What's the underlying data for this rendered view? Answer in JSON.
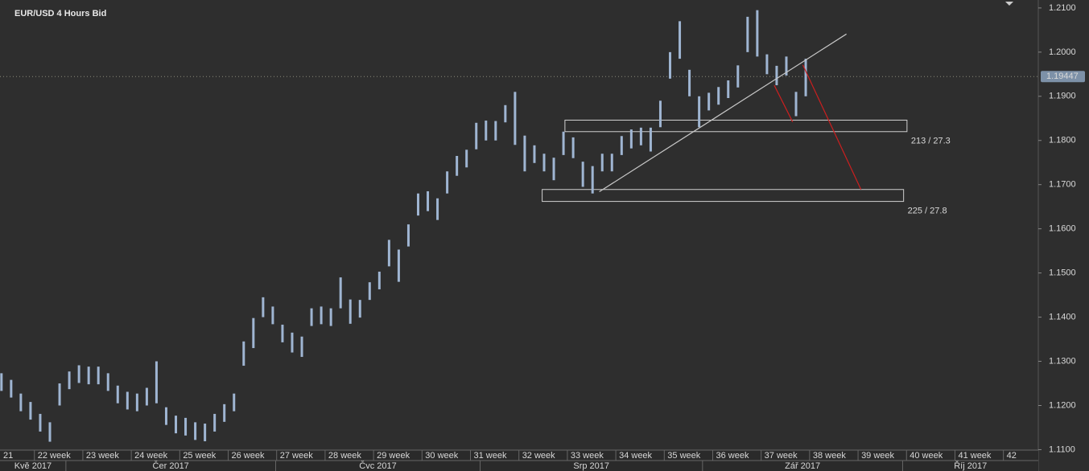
{
  "chart_data": {
    "type": "ohlc",
    "title": "EUR/USD  4 Hours Bid",
    "color": "#9fb5d2",
    "x": [
      21.32,
      21.52,
      21.72,
      21.92,
      22.12,
      22.32,
      22.52,
      22.72,
      22.92,
      23.12,
      23.32,
      23.52,
      23.72,
      23.92,
      24.12,
      24.32,
      24.52,
      24.72,
      24.92,
      25.12,
      25.32,
      25.52,
      25.72,
      25.92,
      26.12,
      26.32,
      26.52,
      26.72,
      26.92,
      27.12,
      27.32,
      27.52,
      27.72,
      27.92,
      28.12,
      28.32,
      28.52,
      28.72,
      28.92,
      29.12,
      29.32,
      29.52,
      29.72,
      29.92,
      30.12,
      30.32,
      30.52,
      30.72,
      30.92,
      31.12,
      31.32,
      31.52,
      31.72,
      31.92,
      32.12,
      32.32,
      32.52,
      32.72,
      32.92,
      33.12,
      33.32,
      33.52,
      33.72,
      33.92,
      34.12,
      34.32,
      34.52,
      34.72,
      34.92,
      35.12,
      35.32,
      35.52,
      35.72,
      35.92,
      36.12,
      36.32,
      36.52,
      36.72,
      36.92,
      37.12,
      37.32,
      37.52,
      37.72,
      37.92
    ],
    "high": [
      1.1273,
      1.1258,
      1.1227,
      1.1208,
      1.1181,
      1.1162,
      1.125,
      1.1277,
      1.1291,
      1.1288,
      1.1288,
      1.1273,
      1.1245,
      1.1231,
      1.1227,
      1.124,
      1.13,
      1.1196,
      1.1177,
      1.1172,
      1.1162,
      1.1159,
      1.1181,
      1.1203,
      1.1227,
      1.1345,
      1.1398,
      1.1445,
      1.1424,
      1.1383,
      1.1365,
      1.1356,
      1.142,
      1.1424,
      1.142,
      1.149,
      1.144,
      1.1439,
      1.1479,
      1.1503,
      1.1575,
      1.1553,
      1.161,
      1.168,
      1.1685,
      1.1669,
      1.173,
      1.1765,
      1.1779,
      1.184,
      1.1845,
      1.1844,
      1.188,
      1.191,
      1.1811,
      1.1789,
      1.177,
      1.1761,
      1.182,
      1.1807,
      1.1752,
      1.1742,
      1.177,
      1.177,
      1.181,
      1.1825,
      1.1829,
      1.1829,
      1.189,
      1.2,
      1.207,
      1.196,
      1.19,
      1.1908,
      1.1921,
      1.1936,
      1.197,
      1.208,
      1.2095,
      1.1995,
      1.1969,
      1.199,
      1.191,
      1.1985
    ],
    "low": [
      1.1233,
      1.1218,
      1.1187,
      1.1168,
      1.1141,
      1.1118,
      1.12,
      1.1237,
      1.1251,
      1.1248,
      1.1248,
      1.1233,
      1.1205,
      1.1191,
      1.1187,
      1.12,
      1.1205,
      1.1156,
      1.1137,
      1.1132,
      1.1122,
      1.1119,
      1.1141,
      1.1163,
      1.1187,
      1.129,
      1.133,
      1.14,
      1.1384,
      1.1343,
      1.132,
      1.131,
      1.138,
      1.1384,
      1.138,
      1.142,
      1.1385,
      1.1399,
      1.1439,
      1.1463,
      1.1515,
      1.148,
      1.156,
      1.163,
      1.164,
      1.162,
      1.168,
      1.172,
      1.1739,
      1.178,
      1.18,
      1.18,
      1.1841,
      1.179,
      1.173,
      1.1749,
      1.173,
      1.171,
      1.1767,
      1.176,
      1.1695,
      1.168,
      1.173,
      1.173,
      1.1767,
      1.1782,
      1.1789,
      1.1775,
      1.183,
      1.194,
      1.1985,
      1.19,
      1.183,
      1.1868,
      1.1881,
      1.1896,
      1.192,
      1.2,
      1.199,
      1.195,
      1.1925,
      1.1947,
      1.1855,
      1.19
    ],
    "last_price": 1.19447,
    "ylim": [
      1.1099,
      1.2118
    ],
    "yticks": [
      {
        "value": 1.11,
        "label": "1.1100"
      },
      {
        "value": 1.12,
        "label": "1.1200"
      },
      {
        "value": 1.13,
        "label": "1.1300"
      },
      {
        "value": 1.14,
        "label": "1.1400"
      },
      {
        "value": 1.15,
        "label": "1.1500"
      },
      {
        "value": 1.16,
        "label": "1.1600"
      },
      {
        "value": 1.17,
        "label": "1.1700"
      },
      {
        "value": 1.18,
        "label": "1.1800"
      },
      {
        "value": 1.19,
        "label": "1.1900"
      },
      {
        "value": 1.2,
        "label": "1.2000"
      },
      {
        "value": 1.21,
        "label": "1.2100"
      }
    ],
    "xlim": [
      21.29,
      42.72
    ],
    "xticks": [
      21,
      {
        "value": 22,
        "label": "22 week"
      },
      {
        "value": 23,
        "label": "23 week"
      },
      {
        "value": 24,
        "label": "24 week"
      },
      {
        "value": 25,
        "label": "25 week"
      },
      {
        "value": 26,
        "label": "26 week"
      },
      {
        "value": 27,
        "label": "27 week"
      },
      {
        "value": 28,
        "label": "28 week"
      },
      {
        "value": 29,
        "label": "29 week"
      },
      {
        "value": 30,
        "label": "30 week"
      },
      {
        "value": 31,
        "label": "31 week"
      },
      {
        "value": 32,
        "label": "32 week"
      },
      {
        "value": 33,
        "label": "33 week"
      },
      {
        "value": 34,
        "label": "34 week"
      },
      {
        "value": 35,
        "label": "35 week"
      },
      {
        "value": 36,
        "label": "36 week"
      },
      {
        "value": 37,
        "label": "37 week"
      },
      {
        "value": 38,
        "label": "38 week"
      },
      {
        "value": 39,
        "label": "39 week"
      },
      {
        "value": 40,
        "label": "40 week"
      },
      {
        "value": 41,
        "label": "41 week"
      },
      42
    ],
    "months": [
      "Kvě 2017",
      "Čer 2017",
      "Čvc 2017",
      "Srp 2017",
      "Zář 2017",
      "Říj 2017"
    ],
    "month_starts": [
      22.65,
      26.98,
      31.2,
      35.79,
      39.92
    ],
    "zones": [
      {
        "x": [
          32.95,
          40.01
        ],
        "y": [
          1.1846,
          1.182
        ],
        "label": "213 / 27.3"
      },
      {
        "x": [
          32.48,
          39.94
        ],
        "y": [
          1.1689,
          1.1662
        ],
        "label": "225 / 27.8"
      }
    ],
    "lines": [
      {
        "x": [
          33.66,
          38.76
        ],
        "y": [
          1.1684,
          1.2041
        ],
        "color": "#c8c8c8"
      },
      {
        "x": [
          37.86,
          39.06
        ],
        "y": [
          1.1971,
          1.1689
        ],
        "color": "#cc1f1f"
      },
      {
        "x": [
          37.27,
          37.65
        ],
        "y": [
          1.1925,
          1.1842
        ],
        "color": "#cc1f1f"
      }
    ]
  }
}
